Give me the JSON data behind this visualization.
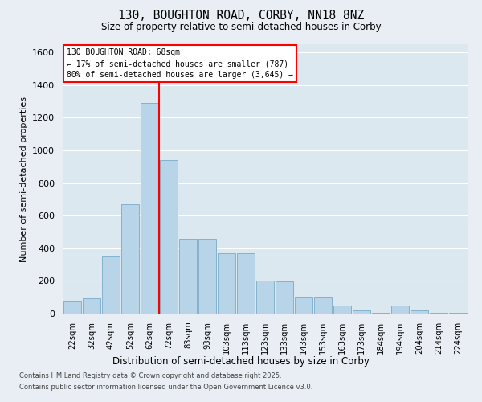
{
  "title_line1": "130, BOUGHTON ROAD, CORBY, NN18 8NZ",
  "title_line2": "Size of property relative to semi-detached houses in Corby",
  "xlabel": "Distribution of semi-detached houses by size in Corby",
  "ylabel": "Number of semi-detached properties",
  "categories": [
    "22sqm",
    "32sqm",
    "42sqm",
    "52sqm",
    "62sqm",
    "72sqm",
    "83sqm",
    "93sqm",
    "103sqm",
    "113sqm",
    "123sqm",
    "133sqm",
    "143sqm",
    "153sqm",
    "163sqm",
    "173sqm",
    "184sqm",
    "194sqm",
    "204sqm",
    "214sqm",
    "224sqm"
  ],
  "values": [
    75,
    95,
    350,
    670,
    1290,
    940,
    460,
    460,
    370,
    370,
    200,
    195,
    100,
    100,
    50,
    20,
    5,
    50,
    20,
    5,
    3
  ],
  "bar_color": "#b8d4e8",
  "bar_edge_color": "#7aaac8",
  "annotation_text": "130 BOUGHTON ROAD: 68sqm\n← 17% of semi-detached houses are smaller (787)\n80% of semi-detached houses are larger (3,645) →",
  "footer_line1": "Contains HM Land Registry data © Crown copyright and database right 2025.",
  "footer_line2": "Contains public sector information licensed under the Open Government Licence v3.0.",
  "ylim": [
    0,
    1650
  ],
  "background_color": "#e8eef4",
  "plot_bg_color": "#dce8f0",
  "grid_color": "#ffffff",
  "red_line_x": 4.5
}
